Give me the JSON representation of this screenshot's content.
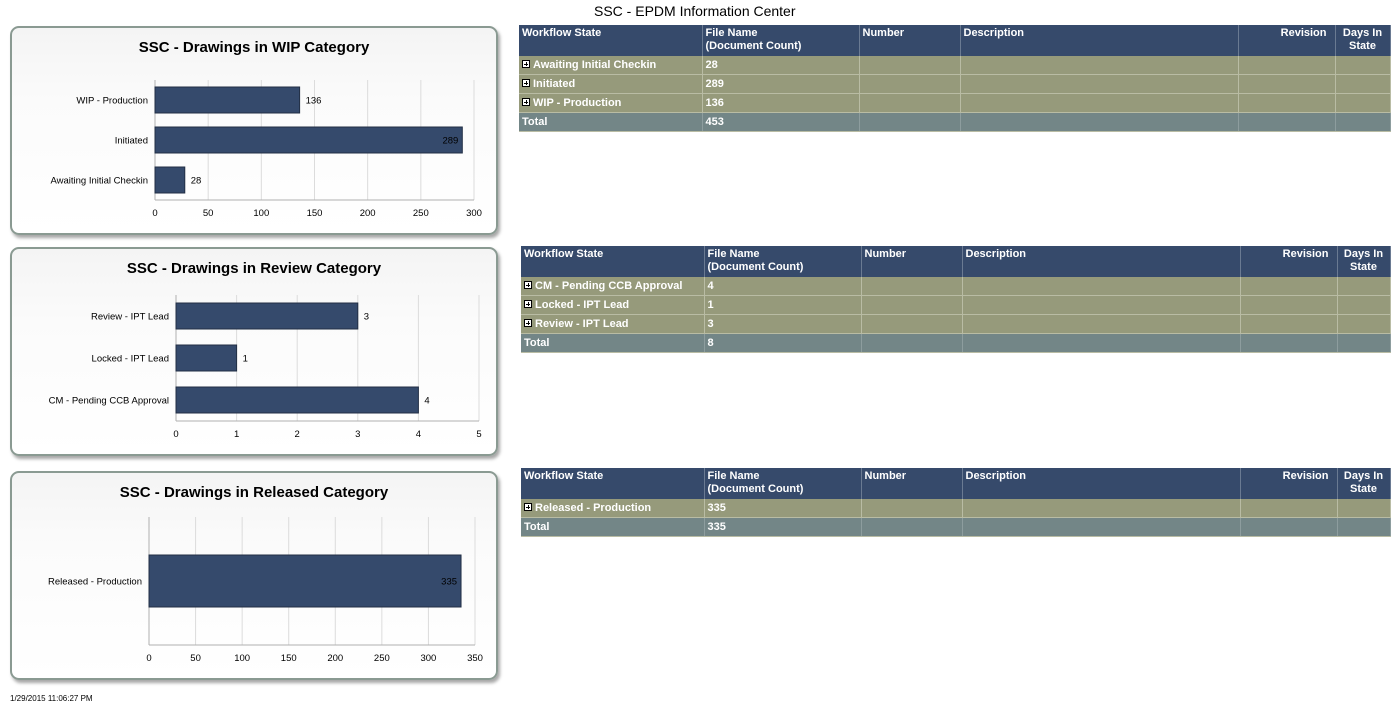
{
  "page_title": "SSC - EPDM Information Center",
  "timestamp": "1/29/2015 11:06:27 PM",
  "colors": {
    "bar": "#354a6c",
    "header": "#364a6b",
    "row": "#969a7b",
    "total_row": "#738687"
  },
  "chart_data": [
    {
      "type": "bar",
      "orientation": "horizontal",
      "title": "SSC - Drawings in WIP Category",
      "categories": [
        "WIP - Production",
        "Initiated",
        "Awaiting Initial Checkin"
      ],
      "values": [
        136,
        289,
        28
      ],
      "xlim": [
        0,
        300
      ],
      "ticks": [
        0,
        50,
        100,
        150,
        200,
        250,
        300
      ],
      "grid": true
    },
    {
      "type": "bar",
      "orientation": "horizontal",
      "title": "SSC - Drawings in Review Category",
      "categories": [
        "Review - IPT Lead",
        "Locked - IPT Lead",
        "CM - Pending CCB Approval"
      ],
      "values": [
        3,
        1,
        4
      ],
      "xlim": [
        0,
        5
      ],
      "ticks": [
        0,
        1,
        2,
        3,
        4,
        5
      ],
      "grid": true
    },
    {
      "type": "bar",
      "orientation": "horizontal",
      "title": "SSC - Drawings in Released Category",
      "categories": [
        "Released - Production"
      ],
      "values": [
        335
      ],
      "xlim": [
        0,
        350
      ],
      "ticks": [
        0,
        50,
        100,
        150,
        200,
        250,
        300,
        350
      ],
      "grid": true
    }
  ],
  "tables": [
    {
      "columns": [
        "Workflow State",
        "File Name\n(Document Count)",
        "Number",
        "Description",
        "Revision",
        "Days In\nState"
      ],
      "rows": [
        {
          "state": "Awaiting Initial Checkin",
          "count": "28"
        },
        {
          "state": "Initiated",
          "count": "289"
        },
        {
          "state": "WIP - Production",
          "count": "136"
        }
      ],
      "total": {
        "label": "Total",
        "count": "453"
      }
    },
    {
      "columns": [
        "Workflow State",
        "File Name\n(Document Count)",
        "Number",
        "Description",
        "Revision",
        "Days In\nState"
      ],
      "rows": [
        {
          "state": "CM - Pending CCB Approval",
          "count": "4"
        },
        {
          "state": "Locked - IPT Lead",
          "count": "1"
        },
        {
          "state": "Review - IPT Lead",
          "count": "3"
        }
      ],
      "total": {
        "label": "Total",
        "count": "8"
      }
    },
    {
      "columns": [
        "Workflow State",
        "File Name\n(Document Count)",
        "Number",
        "Description",
        "Revision",
        "Days In\nState"
      ],
      "rows": [
        {
          "state": "Released - Production",
          "count": "335"
        }
      ],
      "total": {
        "label": "Total",
        "count": "335"
      }
    }
  ]
}
